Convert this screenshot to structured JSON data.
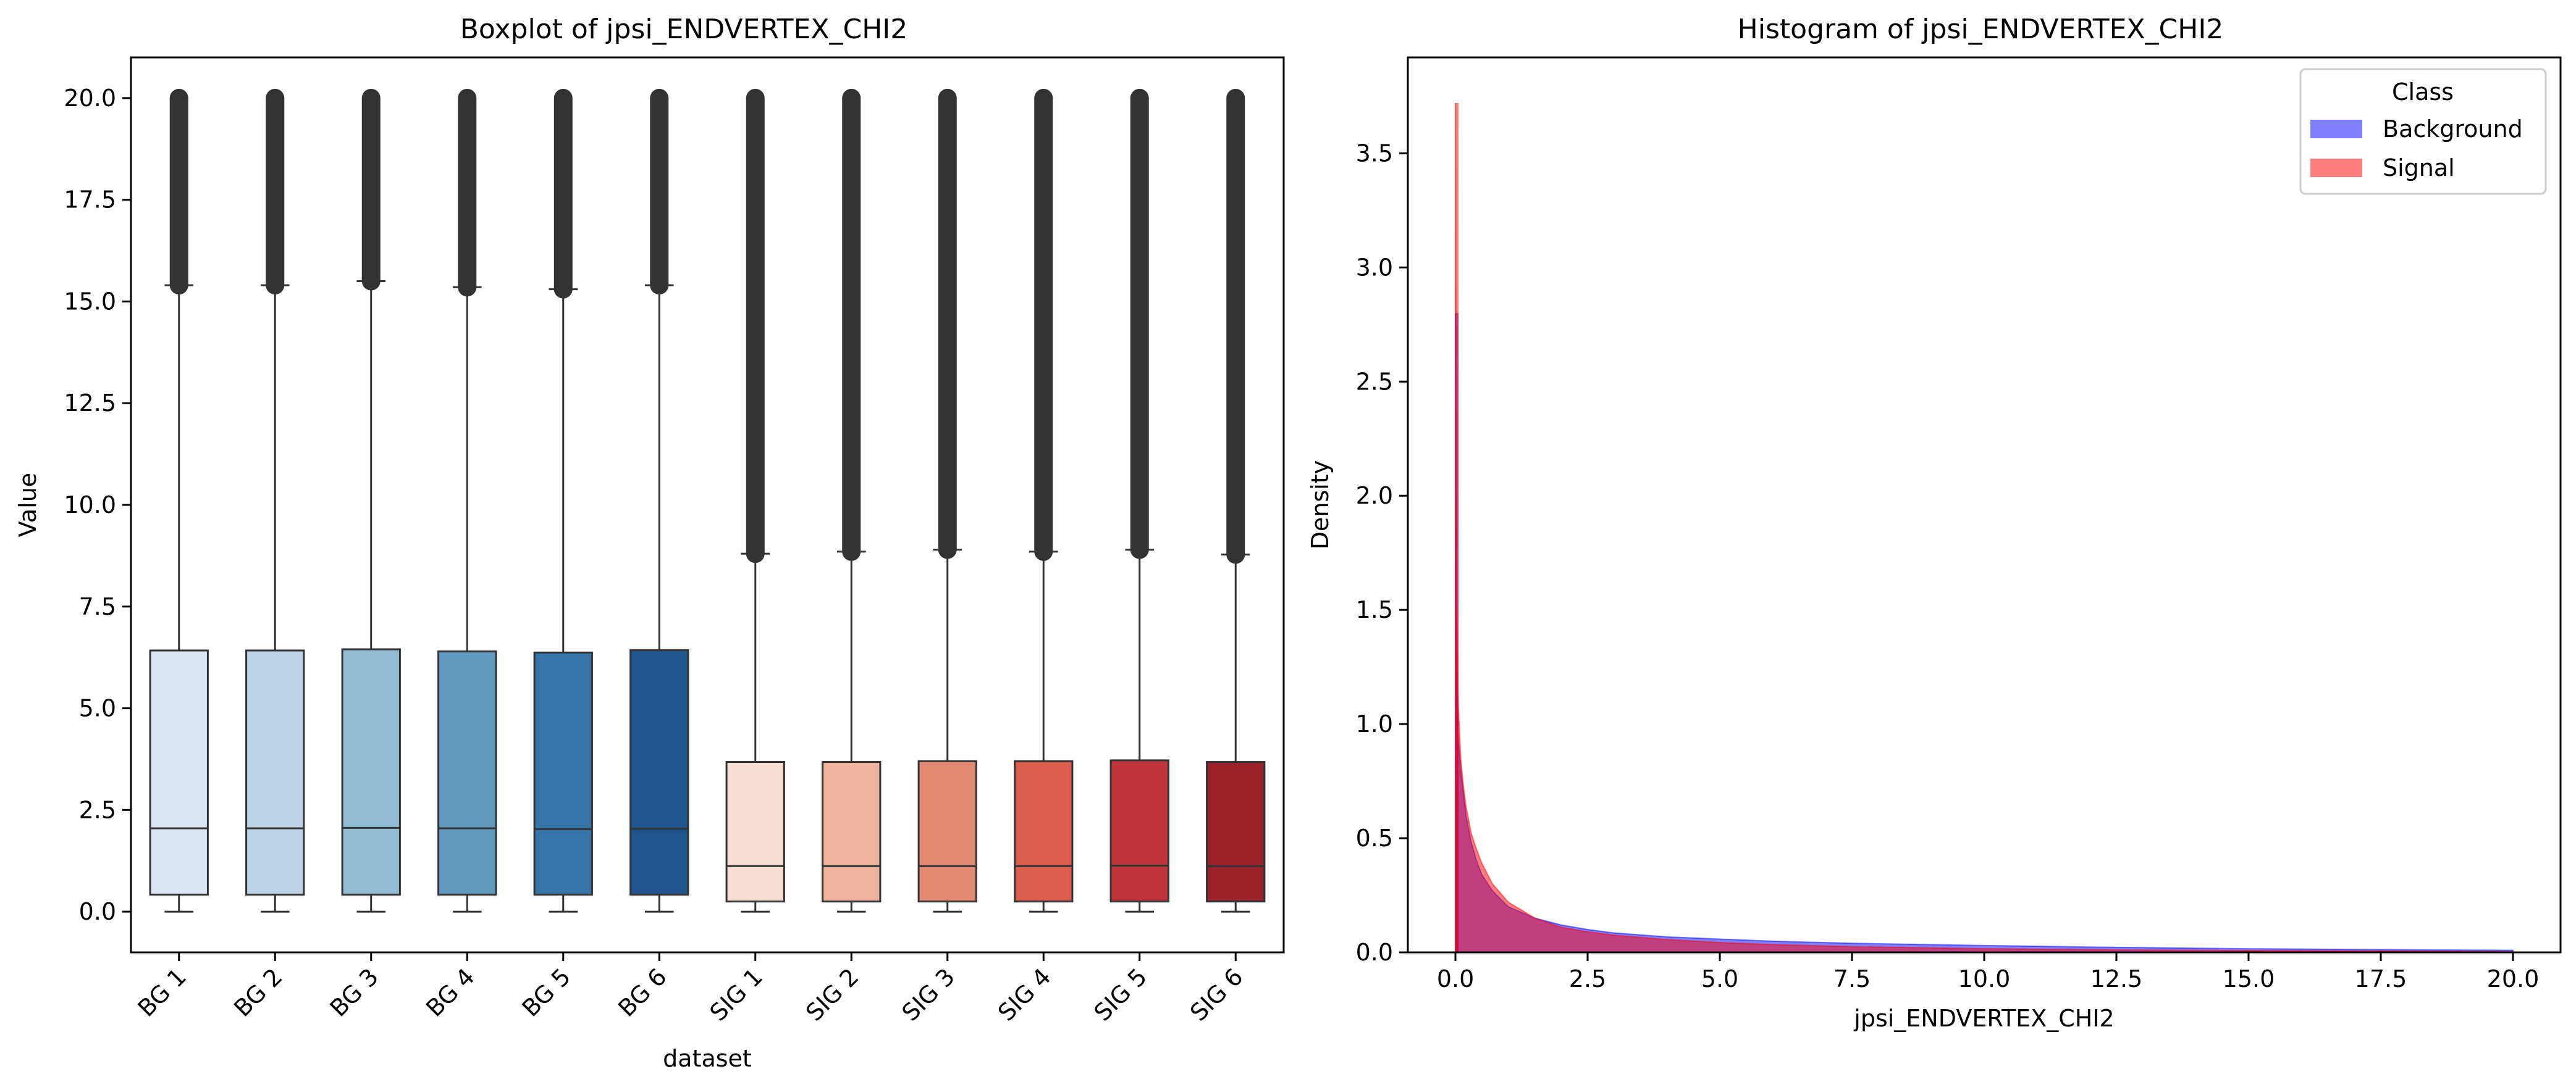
{
  "chart_data": [
    {
      "type": "boxplot",
      "title": "Boxplot of jpsi_ENDVERTEX_CHI2",
      "xlabel": "dataset",
      "ylabel": "Value",
      "ylim": [
        -1,
        21
      ],
      "yticks": [
        "0.0",
        "2.5",
        "5.0",
        "7.5",
        "10.0",
        "12.5",
        "15.0",
        "17.5",
        "20.0"
      ],
      "categories": [
        "BG 1",
        "BG 2",
        "BG 3",
        "BG 4",
        "BG 5",
        "BG 6",
        "SIG 1",
        "SIG 2",
        "SIG 3",
        "SIG 4",
        "SIG 5",
        "SIG 6"
      ],
      "boxes": [
        {
          "name": "BG 1",
          "whislo": 0.0,
          "q1": 0.42,
          "med": 2.05,
          "q3": 6.42,
          "whishi": 15.4,
          "flier_lo": 15.4,
          "flier_hi": 20.0,
          "color": "#dce6f2"
        },
        {
          "name": "BG 2",
          "whislo": 0.0,
          "q1": 0.42,
          "med": 2.05,
          "q3": 6.42,
          "whishi": 15.4,
          "flier_lo": 15.4,
          "flier_hi": 20.0,
          "color": "#bdd4e7"
        },
        {
          "name": "BG 3",
          "whislo": 0.0,
          "q1": 0.42,
          "med": 2.06,
          "q3": 6.45,
          "whishi": 15.5,
          "flier_lo": 15.5,
          "flier_hi": 20.0,
          "color": "#92bbd4"
        },
        {
          "name": "BG 4",
          "whislo": 0.0,
          "q1": 0.42,
          "med": 2.05,
          "q3": 6.4,
          "whishi": 15.35,
          "flier_lo": 15.35,
          "flier_hi": 20.0,
          "color": "#6099c0"
        },
        {
          "name": "BG 5",
          "whislo": 0.0,
          "q1": 0.42,
          "med": 2.03,
          "q3": 6.37,
          "whishi": 15.3,
          "flier_lo": 15.3,
          "flier_hi": 20.0,
          "color": "#3675a9"
        },
        {
          "name": "BG 6",
          "whislo": 0.0,
          "q1": 0.42,
          "med": 2.04,
          "q3": 6.43,
          "whishi": 15.4,
          "flier_lo": 15.4,
          "flier_hi": 20.0,
          "color": "#1f548c"
        },
        {
          "name": "SIG 1",
          "whislo": 0.0,
          "q1": 0.25,
          "med": 1.12,
          "q3": 3.68,
          "whishi": 8.8,
          "flier_lo": 8.8,
          "flier_hi": 20.0,
          "color": "#f6dfd2"
        },
        {
          "name": "SIG 2",
          "whislo": 0.0,
          "q1": 0.25,
          "med": 1.12,
          "q3": 3.68,
          "whishi": 8.85,
          "flier_lo": 8.85,
          "flier_hi": 20.0,
          "color": "#efb29d"
        },
        {
          "name": "SIG 3",
          "whislo": 0.0,
          "q1": 0.25,
          "med": 1.12,
          "q3": 3.7,
          "whishi": 8.9,
          "flier_lo": 8.9,
          "flier_hi": 20.0,
          "color": "#e68b73"
        },
        {
          "name": "SIG 4",
          "whislo": 0.0,
          "q1": 0.25,
          "med": 1.12,
          "q3": 3.7,
          "whishi": 8.85,
          "flier_lo": 8.85,
          "flier_hi": 20.0,
          "color": "#dc5e4c"
        },
        {
          "name": "SIG 5",
          "whislo": 0.0,
          "q1": 0.25,
          "med": 1.13,
          "q3": 3.72,
          "whishi": 8.9,
          "flier_lo": 8.9,
          "flier_hi": 20.0,
          "color": "#bf3539"
        },
        {
          "name": "SIG 6",
          "whislo": 0.0,
          "q1": 0.25,
          "med": 1.12,
          "q3": 3.68,
          "whishi": 8.78,
          "flier_lo": 8.78,
          "flier_hi": 20.0,
          "color": "#9a2129"
        }
      ]
    },
    {
      "type": "histogram",
      "title": "Histogram of jpsi_ENDVERTEX_CHI2",
      "xlabel": "jpsi_ENDVERTEX_CHI2",
      "ylabel": "Density",
      "xlim": [
        -0.9,
        20.9
      ],
      "ylim": [
        0,
        3.92
      ],
      "xticks": [
        "0.0",
        "2.5",
        "5.0",
        "7.5",
        "10.0",
        "12.5",
        "15.0",
        "17.5",
        "20.0"
      ],
      "yticks": [
        "0.0",
        "0.5",
        "1.0",
        "1.5",
        "2.0",
        "2.5",
        "3.0",
        "3.5"
      ],
      "legend": {
        "title": "Class",
        "position": "upper right"
      },
      "series": [
        {
          "name": "Background",
          "color": "#0000ff",
          "x": [
            0.0,
            0.02,
            0.05,
            0.1,
            0.15,
            0.2,
            0.3,
            0.4,
            0.5,
            0.7,
            1.0,
            1.5,
            2.0,
            2.5,
            3.0,
            4.0,
            5.0,
            6.0,
            7.5,
            10.0,
            12.5,
            15.0,
            17.5,
            20.0
          ],
          "y": [
            2.8,
            1.2,
            0.95,
            0.8,
            0.7,
            0.6,
            0.48,
            0.4,
            0.34,
            0.27,
            0.2,
            0.15,
            0.12,
            0.1,
            0.085,
            0.068,
            0.058,
            0.049,
            0.04,
            0.03,
            0.022,
            0.016,
            0.012,
            0.009
          ]
        },
        {
          "name": "Signal",
          "color": "#ff0000",
          "x": [
            0.0,
            0.02,
            0.05,
            0.1,
            0.15,
            0.2,
            0.3,
            0.4,
            0.5,
            0.7,
            1.0,
            1.5,
            2.0,
            2.5,
            3.0,
            4.0,
            5.0,
            6.0,
            7.5,
            10.0,
            12.5,
            15.0,
            17.5,
            20.0
          ],
          "y": [
            3.72,
            1.5,
            1.1,
            0.85,
            0.73,
            0.64,
            0.52,
            0.45,
            0.39,
            0.3,
            0.22,
            0.15,
            0.11,
            0.09,
            0.075,
            0.056,
            0.043,
            0.034,
            0.025,
            0.016,
            0.011,
            0.008,
            0.006,
            0.004
          ]
        }
      ]
    }
  ]
}
